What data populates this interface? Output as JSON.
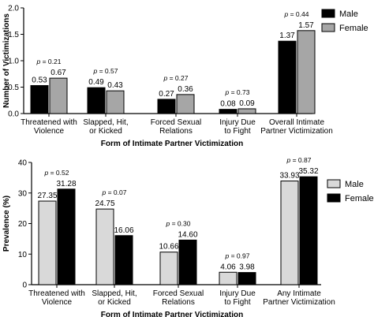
{
  "chart_data": [
    {
      "type": "bar",
      "ylabel": "Number of Victimizations",
      "xlabel": "Form of Intimate Partner Victimization",
      "ylim": [
        0,
        2.0
      ],
      "yticks": [
        "0.0",
        "0.5",
        "1.0",
        "1.5",
        "2.0"
      ],
      "grid": false,
      "legend_position": "top-right",
      "categories": [
        [
          "Threatened with",
          "Violence"
        ],
        [
          "Slapped, Hit,",
          "or Kicked"
        ],
        [
          "Forced Sexual",
          "Relations"
        ],
        [
          "Injury Due",
          "to Fight"
        ],
        [
          "Overall Intimate",
          "Partner Victimization"
        ]
      ],
      "p_values": [
        "p = 0.21",
        "p = 0.57",
        "p = 0.27",
        "p = 0.73",
        "p = 0.44"
      ],
      "series": [
        {
          "name": "Male",
          "color": "#000000",
          "values": [
            0.53,
            0.49,
            0.27,
            0.08,
            1.37
          ],
          "labels": [
            "0.53",
            "0.49",
            "0.27",
            "0.08",
            "1.37"
          ]
        },
        {
          "name": "Female",
          "color": "#a6a6a6",
          "values": [
            0.67,
            0.43,
            0.36,
            0.09,
            1.57
          ],
          "labels": [
            "0.67",
            "0.43",
            "0.36",
            "0.09",
            "1.57"
          ]
        }
      ]
    },
    {
      "type": "bar",
      "ylabel": "Prevalence (%)",
      "xlabel": "Form of Intimate Partner Victimization",
      "ylim": [
        0,
        40
      ],
      "yticks": [
        "0",
        "10",
        "20",
        "30",
        "40"
      ],
      "grid": false,
      "legend_position": "top-right",
      "categories": [
        [
          "Threatened with",
          "Violence"
        ],
        [
          "Slapped, Hit,",
          "or Kicked"
        ],
        [
          "Forced Sexual",
          "Relations"
        ],
        [
          "Injury Due",
          "to Fight"
        ],
        [
          "Any Intimate",
          "Partner Victimization"
        ]
      ],
      "p_values": [
        "p = 0.52",
        "p = 0.07",
        "p = 0.30",
        "p = 0.97",
        "p = 0.87"
      ],
      "series": [
        {
          "name": "Male",
          "color": "#d9d9d9",
          "values": [
            27.35,
            24.75,
            10.66,
            4.06,
            33.93
          ],
          "labels": [
            "27.35",
            "24.75",
            "10.66",
            "4.06",
            "33.93"
          ]
        },
        {
          "name": "Female",
          "color": "#000000",
          "values": [
            31.28,
            16.06,
            14.6,
            3.98,
            35.32
          ],
          "labels": [
            "31.28",
            "16.06",
            "14.60",
            "3.98",
            "35.32"
          ]
        }
      ]
    }
  ]
}
